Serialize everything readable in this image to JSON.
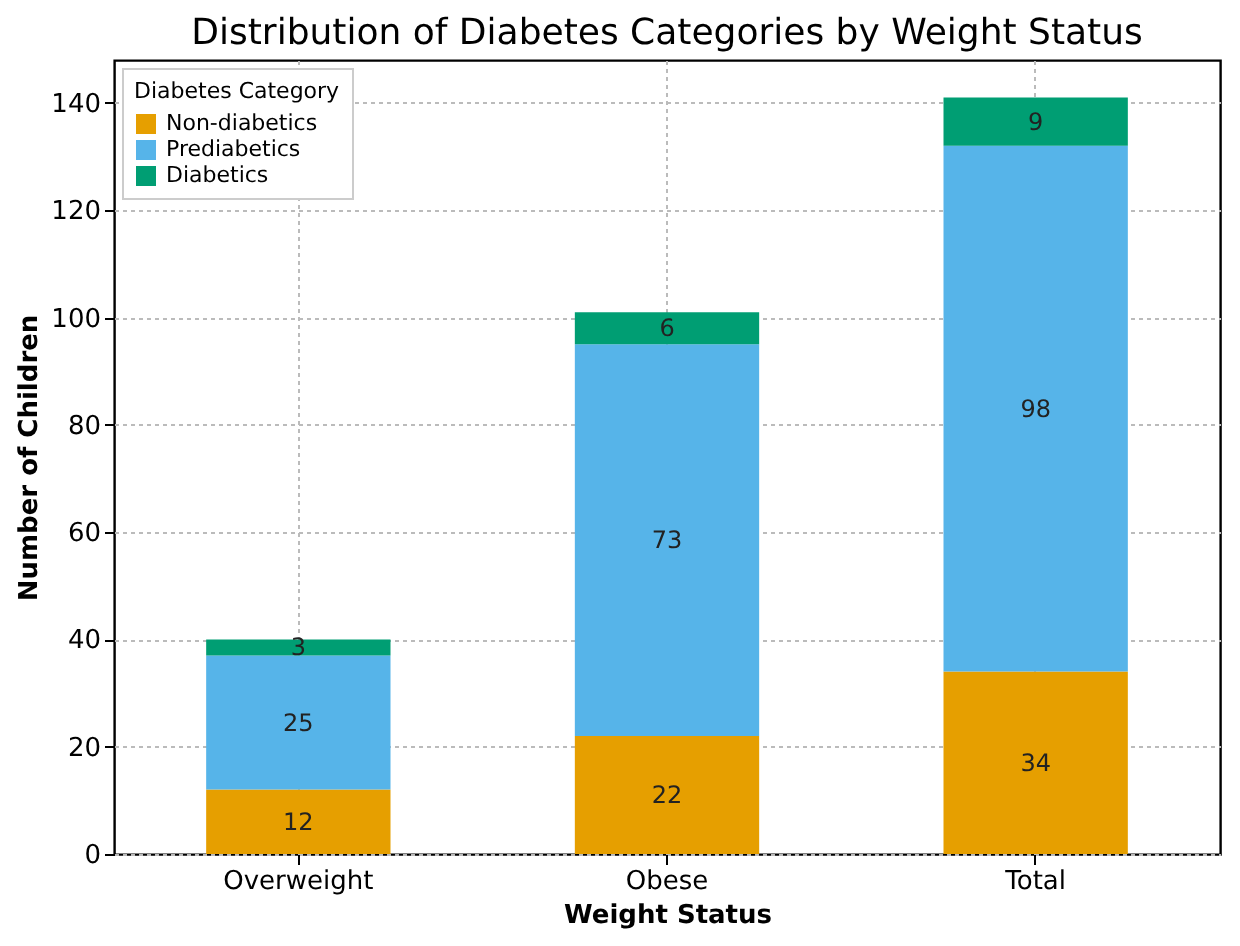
{
  "chart_data": {
    "type": "bar",
    "title": "Distribution of Diabetes Categories by Weight Status",
    "xlabel": "Weight Status",
    "ylabel": "Number of Children",
    "legend_title": "Diabetes Category",
    "categories": [
      "Overweight",
      "Obese",
      "Total"
    ],
    "stacked": true,
    "series": [
      {
        "name": "Non-diabetics",
        "color": "#e69f00",
        "values": [
          12,
          22,
          34
        ]
      },
      {
        "name": "Prediabetics",
        "color": "#56b4e9",
        "values": [
          25,
          73,
          98
        ]
      },
      {
        "name": "Diabetics",
        "color": "#009e73",
        "values": [
          3,
          6,
          9
        ]
      }
    ],
    "ylim": [
      0,
      148
    ],
    "yticks": [
      0,
      20,
      40,
      60,
      80,
      100,
      120,
      140
    ],
    "grid": true,
    "legend": "top left",
    "data_labels": true
  }
}
